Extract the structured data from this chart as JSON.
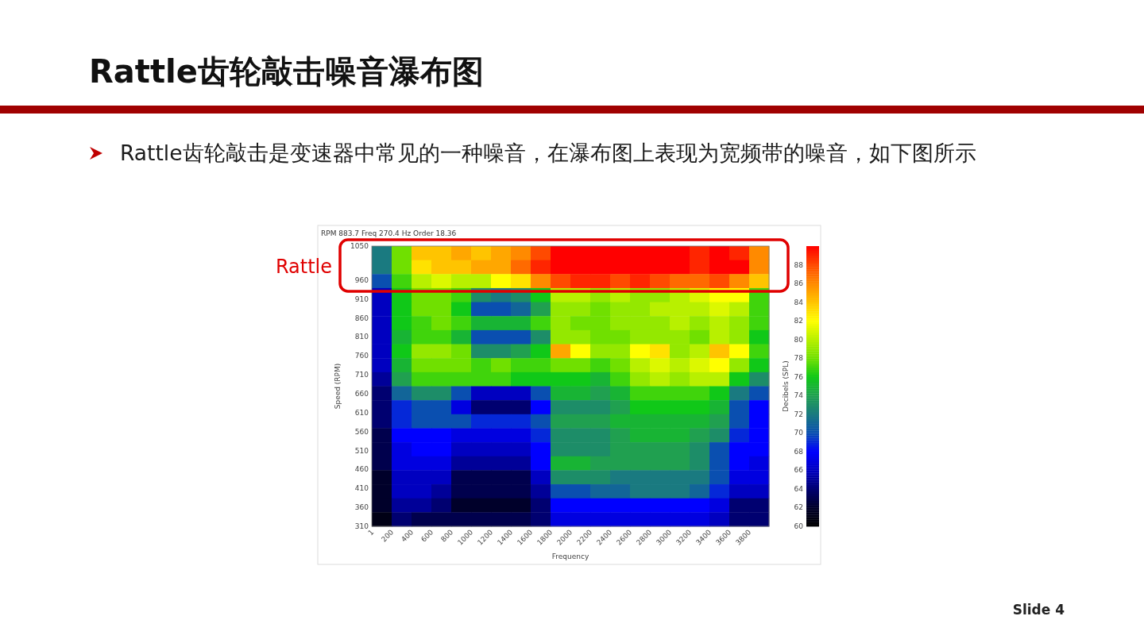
{
  "chart_data": {
    "type": "heatmap",
    "title": "Rattle齿轮敲击噪音瀑布图",
    "subtitle": "Rattle齿轮敲击是变速器中常见的一种噪音，在瀑布图上表现为宽频带的噪音，如下图所示",
    "xlabel": "Frequency",
    "ylabel": "Speed (RPM)",
    "clabel": "Decibels (SPL)",
    "x": [
      101,
      301,
      501,
      701,
      901,
      1101,
      1301,
      1501,
      1701,
      1901,
      2101,
      2301,
      2501,
      2701,
      2901,
      3101,
      3301,
      3501,
      3701,
      3901
    ],
    "y": [
      1031.5,
      994.5,
      957.5,
      920.5,
      883.5,
      846.5,
      809.5,
      772.5,
      735.5,
      698.5,
      661.5,
      624.5,
      587.5,
      550.5,
      513.5,
      476.5,
      439.5,
      402.5,
      365.5,
      328.5
    ],
    "xlim": [
      1,
      4001
    ],
    "xticks": [
      1,
      200,
      400,
      600,
      800,
      1000,
      1200,
      1400,
      1600,
      1800,
      2000,
      2200,
      2400,
      2600,
      2800,
      3000,
      3200,
      3400,
      3600,
      3800
    ],
    "ylim": [
      310,
      1050
    ],
    "yticks": [
      1050,
      960,
      910,
      860,
      810,
      760,
      710,
      660,
      610,
      560,
      510,
      460,
      410,
      360,
      310
    ],
    "clim": [
      60,
      90
    ],
    "cticks": [
      60,
      62,
      64,
      66,
      68,
      70,
      72,
      74,
      76,
      78,
      80,
      82,
      84,
      86,
      88
    ],
    "cells": [
      [
        72,
        78,
        84,
        84,
        85,
        84,
        85,
        86,
        88,
        90,
        90,
        90,
        90,
        90,
        90,
        90,
        89,
        90,
        89,
        86
      ],
      [
        72,
        78,
        83,
        84,
        84,
        85,
        85,
        87,
        89,
        90,
        90,
        90,
        90,
        90,
        90,
        90,
        89,
        90,
        90,
        86
      ],
      [
        70,
        77,
        80,
        81,
        80,
        80,
        82,
        83,
        86,
        88,
        89,
        89,
        88,
        89,
        88,
        87,
        87,
        88,
        86,
        84
      ],
      [
        66,
        76,
        78,
        78,
        77,
        73,
        72,
        73,
        76,
        80,
        80,
        79,
        80,
        79,
        79,
        80,
        81,
        82,
        82,
        77
      ],
      [
        66,
        76,
        78,
        78,
        76,
        70,
        70,
        71,
        74,
        79,
        79,
        78,
        79,
        79,
        80,
        80,
        80,
        81,
        80,
        77
      ],
      [
        66,
        76,
        77,
        78,
        77,
        75,
        75,
        75,
        77,
        79,
        78,
        78,
        79,
        79,
        79,
        80,
        79,
        80,
        79,
        77
      ],
      [
        66,
        75,
        77,
        77,
        75,
        70,
        70,
        70,
        73,
        79,
        79,
        78,
        78,
        79,
        79,
        79,
        78,
        80,
        79,
        76
      ],
      [
        66,
        76,
        79,
        79,
        78,
        73,
        73,
        74,
        76,
        85,
        82,
        79,
        79,
        82,
        83,
        79,
        80,
        84,
        82,
        77
      ],
      [
        66,
        75,
        78,
        78,
        78,
        77,
        78,
        77,
        77,
        78,
        78,
        77,
        78,
        80,
        81,
        80,
        81,
        82,
        79,
        76
      ],
      [
        65,
        74,
        77,
        77,
        77,
        77,
        77,
        76,
        76,
        76,
        76,
        75,
        77,
        79,
        80,
        79,
        80,
        80,
        76,
        73
      ],
      [
        64,
        71,
        73,
        73,
        70,
        66,
        66,
        66,
        70,
        75,
        75,
        74,
        75,
        77,
        77,
        77,
        77,
        76,
        72,
        70
      ],
      [
        64,
        69,
        70,
        70,
        67,
        64,
        64,
        64,
        68,
        73,
        73,
        73,
        74,
        76,
        76,
        76,
        76,
        75,
        70,
        68
      ],
      [
        64,
        69,
        70,
        70,
        70,
        69,
        69,
        69,
        70,
        74,
        74,
        74,
        75,
        75,
        75,
        75,
        75,
        74,
        70,
        68
      ],
      [
        63,
        68,
        68,
        68,
        67,
        67,
        67,
        67,
        69,
        73,
        73,
        73,
        74,
        75,
        75,
        75,
        74,
        73,
        69,
        68
      ],
      [
        63,
        67,
        68,
        68,
        66,
        66,
        66,
        66,
        68,
        73,
        73,
        73,
        74,
        74,
        74,
        74,
        73,
        70,
        68,
        68
      ],
      [
        63,
        67,
        67,
        67,
        65,
        65,
        65,
        65,
        68,
        75,
        75,
        74,
        74,
        74,
        74,
        74,
        73,
        70,
        68,
        67
      ],
      [
        62,
        66,
        66,
        66,
        63,
        63,
        63,
        63,
        66,
        73,
        73,
        73,
        72,
        72,
        72,
        72,
        72,
        70,
        67,
        67
      ],
      [
        62,
        66,
        66,
        65,
        63,
        63,
        63,
        63,
        65,
        70,
        70,
        71,
        71,
        72,
        72,
        72,
        71,
        69,
        66,
        66
      ],
      [
        62,
        65,
        65,
        64,
        62,
        62,
        62,
        62,
        64,
        68,
        68,
        68,
        68,
        68,
        68,
        68,
        68,
        67,
        64,
        64
      ],
      [
        61,
        64,
        63,
        63,
        63,
        63,
        63,
        63,
        64,
        67,
        67,
        67,
        67,
        67,
        67,
        67,
        67,
        66,
        64,
        64
      ]
    ],
    "annotations": [
      "Rattle",
      "RPM 883.7 Freq 270.4 Hz Order 18.36",
      "Slide 4"
    ]
  }
}
